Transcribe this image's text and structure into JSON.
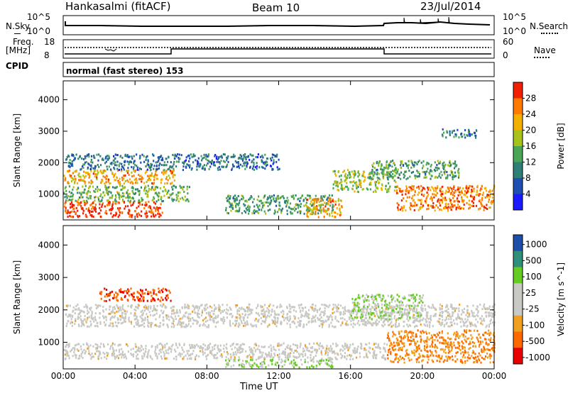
{
  "header": {
    "station": "Hankasalmi (fitACF)",
    "beam": "Beam 10",
    "date": "23/Jul/2014"
  },
  "noise_panel": {
    "left_label": "N.Sky",
    "right_label": "N.Search",
    "left_ticks": [
      "10^5",
      "10^0"
    ],
    "right_ticks": [
      "10^5",
      "10^0"
    ]
  },
  "freq_panel": {
    "label_line1": "Freq.",
    "label_line2": "[MHz]",
    "ticks_left": [
      "18",
      "8"
    ],
    "ticks_right": [
      "60",
      "0"
    ],
    "right_label": "Nave"
  },
  "cpid_panel": {
    "label": "CPID",
    "text": "normal (fast stereo) 153"
  },
  "colors": {
    "power": [
      "#1a1aff",
      "#1f4fb0",
      "#2f7f77",
      "#4aa657",
      "#a8c21c",
      "#f2b000",
      "#ff7a00",
      "#f02000"
    ],
    "velocity": [
      "#e80000",
      "#ff6a00",
      "#f0a020",
      "#c8c8c4",
      "#c8c8c4",
      "#66cc22",
      "#2f8f7a",
      "#1d4fa8"
    ]
  },
  "chart_data": [
    {
      "type": "heatmap",
      "title": "",
      "xlabel": "Time UT",
      "ylabel": "Slant Range [km]",
      "x_ticks": [
        "00:00",
        "04:00",
        "08:00",
        "12:00",
        "16:00",
        "20:00",
        "00:00"
      ],
      "y_ticks": [
        "1000",
        "2000",
        "3000",
        "4000"
      ],
      "xlim": [
        0,
        24
      ],
      "ylim": [
        180,
        4600
      ],
      "colorbar": {
        "label": "Power [dB]",
        "ticks": [
          "4",
          "8",
          "12",
          "16",
          "20",
          "24",
          "28"
        ],
        "range": [
          0,
          30
        ]
      },
      "regions": [
        {
          "t": [
            0,
            6.2
          ],
          "r": [
            1350,
            1800
          ],
          "value": 22
        },
        {
          "t": [
            0,
            5.5
          ],
          "r": [
            300,
            800
          ],
          "value": 28
        },
        {
          "t": [
            0,
            7
          ],
          "r": [
            800,
            1300
          ],
          "value": 14
        },
        {
          "t": [
            0,
            12
          ],
          "r": [
            1800,
            2300
          ],
          "value": 8
        },
        {
          "t": [
            9,
            15
          ],
          "r": [
            400,
            1000
          ],
          "value": 12
        },
        {
          "t": [
            13.5,
            15.5
          ],
          "r": [
            300,
            900
          ],
          "value": 22
        },
        {
          "t": [
            15,
            18.5
          ],
          "r": [
            1100,
            1800
          ],
          "value": 16
        },
        {
          "t": [
            18.5,
            24
          ],
          "r": [
            500,
            1300
          ],
          "value": 24
        },
        {
          "t": [
            21,
            23
          ],
          "r": [
            2800,
            3100
          ],
          "value": 8
        },
        {
          "t": [
            17,
            22
          ],
          "r": [
            1500,
            2100
          ],
          "value": 12
        }
      ]
    },
    {
      "type": "heatmap",
      "title": "",
      "xlabel": "Time UT",
      "ylabel": "Slant Range [km]",
      "x_ticks": [
        "00:00",
        "04:00",
        "08:00",
        "12:00",
        "16:00",
        "20:00",
        "00:00"
      ],
      "y_ticks": [
        "1000",
        "2000",
        "3000",
        "4000"
      ],
      "xlim": [
        0,
        24
      ],
      "ylim": [
        180,
        4600
      ],
      "colorbar": {
        "label": "Velocity [m s^-1]",
        "ticks": [
          "1000",
          "500",
          "100",
          "25",
          "-25",
          "-100",
          "-500",
          "-1000"
        ],
        "range": [
          -1000,
          1000
        ]
      },
      "regions": [
        {
          "t": [
            0,
            24
          ],
          "r": [
            1500,
            2200
          ],
          "value": 0
        },
        {
          "t": [
            0,
            18
          ],
          "r": [
            500,
            1000
          ],
          "value": 0
        },
        {
          "t": [
            2,
            6
          ],
          "r": [
            2300,
            2700
          ],
          "value": -500
        },
        {
          "t": [
            16,
            20
          ],
          "r": [
            1700,
            2500
          ],
          "value": 100
        },
        {
          "t": [
            18,
            24
          ],
          "r": [
            400,
            1400
          ],
          "value": -100
        },
        {
          "t": [
            9,
            15
          ],
          "r": [
            250,
            500
          ],
          "value": 100
        }
      ]
    }
  ]
}
